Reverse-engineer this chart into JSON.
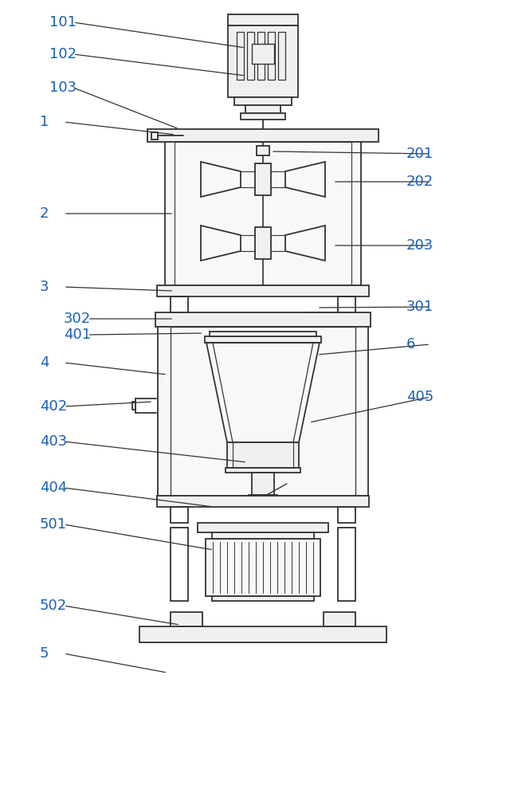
{
  "fig_width": 6.4,
  "fig_height": 10.0,
  "dpi": 100,
  "bg_color": "#ffffff",
  "line_color": "#333333",
  "label_color": "#1a5fb4",
  "lw": 1.3
}
